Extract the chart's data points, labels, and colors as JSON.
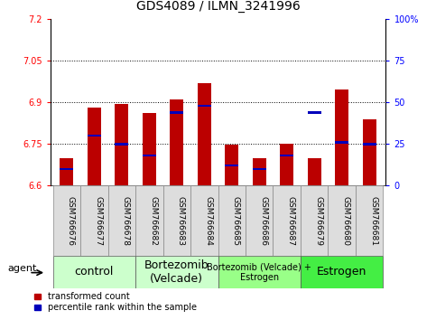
{
  "title": "GDS4089 / ILMN_3241996",
  "samples": [
    "GSM766676",
    "GSM766677",
    "GSM766678",
    "GSM766682",
    "GSM766683",
    "GSM766684",
    "GSM766685",
    "GSM766686",
    "GSM766687",
    "GSM766679",
    "GSM766680",
    "GSM766681"
  ],
  "red_values": [
    6.7,
    6.882,
    6.895,
    6.863,
    6.912,
    6.968,
    6.747,
    6.698,
    6.75,
    6.7,
    6.945,
    6.84
  ],
  "blue_percentiles": [
    10,
    30,
    25,
    18,
    44,
    48,
    12,
    10,
    18,
    44,
    26,
    25
  ],
  "ymin": 6.6,
  "ymax": 7.2,
  "yticks_left": [
    6.6,
    6.75,
    6.9,
    7.05,
    7.2
  ],
  "yticks_right": [
    0,
    25,
    50,
    75,
    100
  ],
  "bar_width": 0.5,
  "red_color": "#BB0000",
  "blue_color": "#0000BB",
  "group_starts": [
    0,
    3,
    6,
    9
  ],
  "group_ends": [
    2,
    5,
    8,
    11
  ],
  "group_labels": [
    "control",
    "Bortezomib\n(Velcade)",
    "Bortezomib (Velcade) +\nEstrogen",
    "Estrogen"
  ],
  "group_colors": [
    "#ccffcc",
    "#ccffcc",
    "#99ff88",
    "#44ee44"
  ],
  "group_font_sizes": [
    9,
    9,
    7,
    9
  ],
  "legend_red": "transformed count",
  "legend_blue": "percentile rank within the sample",
  "agent_label": "agent",
  "grid_lines": [
    6.75,
    6.9,
    7.05
  ],
  "tick_fontsize": 7,
  "title_fontsize": 10,
  "label_fontsize": 7,
  "blue_bar_height": 0.008
}
